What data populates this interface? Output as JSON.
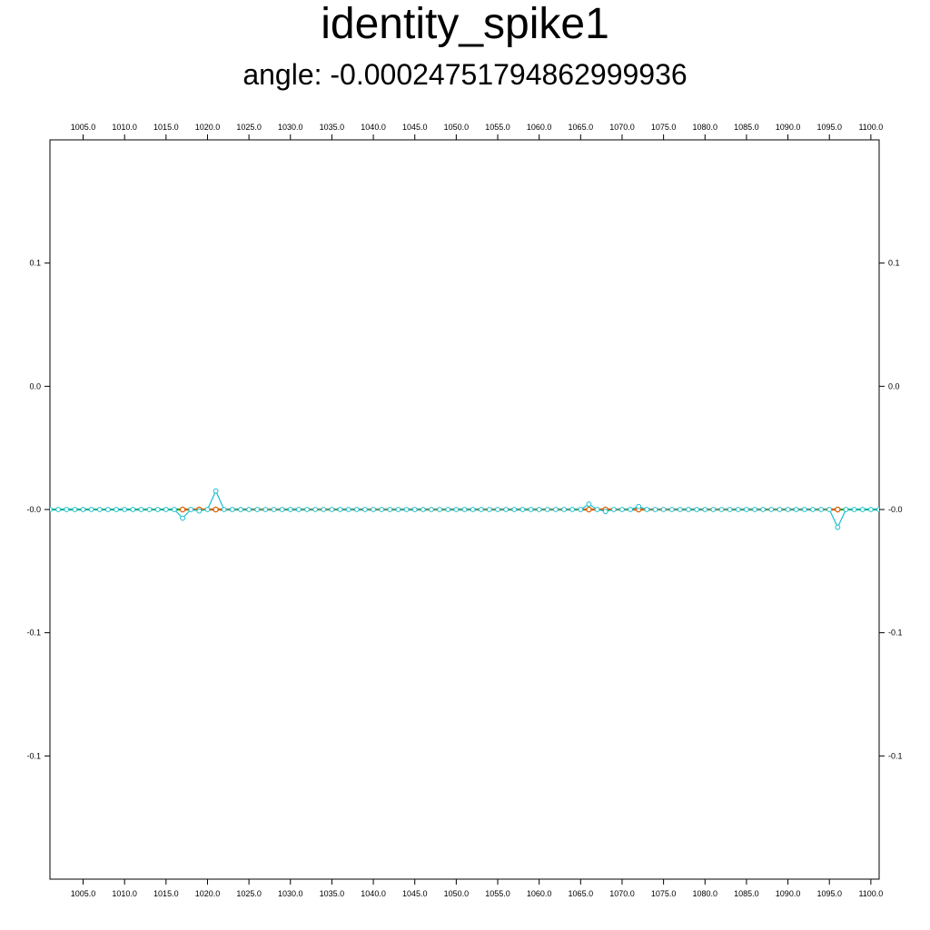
{
  "chart_data": {
    "type": "line",
    "title": "identity_spike1",
    "subtitle": "angle: -0.00024751794862999936",
    "xlabel": "",
    "ylabel": "",
    "x_range": [
      1001,
      1101
    ],
    "y_range": [
      -0.15,
      0.15
    ],
    "x_ticks": [
      1005.0,
      1010.0,
      1015.0,
      1020.0,
      1025.0,
      1030.0,
      1035.0,
      1040.0,
      1045.0,
      1050.0,
      1055.0,
      1060.0,
      1065.0,
      1070.0,
      1075.0,
      1080.0,
      1085.0,
      1090.0,
      1095.0,
      1100.0
    ],
    "x_tick_labels": [
      "1005.0",
      "1010.0",
      "1015.0",
      "1020.0",
      "1025.0",
      "1030.0",
      "1035.0",
      "1040.0",
      "1045.0",
      "1050.0",
      "1055.0",
      "1060.0",
      "1065.0",
      "1070.0",
      "1075.0",
      "1080.0",
      "1085.0",
      "1090.0",
      "1095.0",
      "1100.0"
    ],
    "y_ticks": [
      0.1,
      0.05,
      0.0,
      -0.05,
      -0.1
    ],
    "y_tick_labels": [
      "0.1",
      "0.0",
      "-0.0",
      "-0.1",
      "-0.1"
    ],
    "grid": false,
    "x_start": 1001,
    "x_step": 1,
    "series": [
      {
        "color": "#2ca02c",
        "marker": "circle",
        "points": [
          [
            1001,
            0
          ],
          [
            1101,
            0
          ]
        ]
      },
      {
        "color": "#d95f02",
        "marker": "circle",
        "points": [
          [
            1017,
            0
          ],
          [
            1019,
            0
          ],
          [
            1021,
            0
          ],
          [
            1066,
            0
          ],
          [
            1068,
            0
          ],
          [
            1072,
            0
          ],
          [
            1096,
            0
          ]
        ]
      },
      {
        "color": "#17becf",
        "marker": "circle",
        "values": [
          0,
          0,
          0,
          0,
          0,
          0,
          0,
          0,
          0,
          0,
          0,
          0,
          0,
          0,
          0,
          0,
          -0.0035,
          0,
          -0.0006,
          0,
          0.0075,
          0,
          0,
          0,
          0,
          0,
          0,
          0,
          0,
          0,
          0,
          0,
          0,
          0,
          0,
          0,
          0,
          0,
          0,
          0,
          0,
          0,
          0,
          0,
          0,
          0,
          0,
          0,
          0,
          0,
          0,
          0,
          0,
          0,
          0,
          0,
          0,
          0,
          0,
          0,
          0,
          0,
          0,
          0,
          0,
          0.0022,
          0,
          -0.0008,
          0,
          0,
          0,
          0.0012,
          0,
          0,
          0,
          0,
          0,
          0,
          0,
          0,
          0,
          0,
          0,
          0,
          0,
          0,
          0,
          0,
          0,
          0,
          0,
          0,
          0,
          0,
          0,
          -0.0072,
          0,
          0,
          0,
          0,
          0
        ]
      }
    ]
  }
}
